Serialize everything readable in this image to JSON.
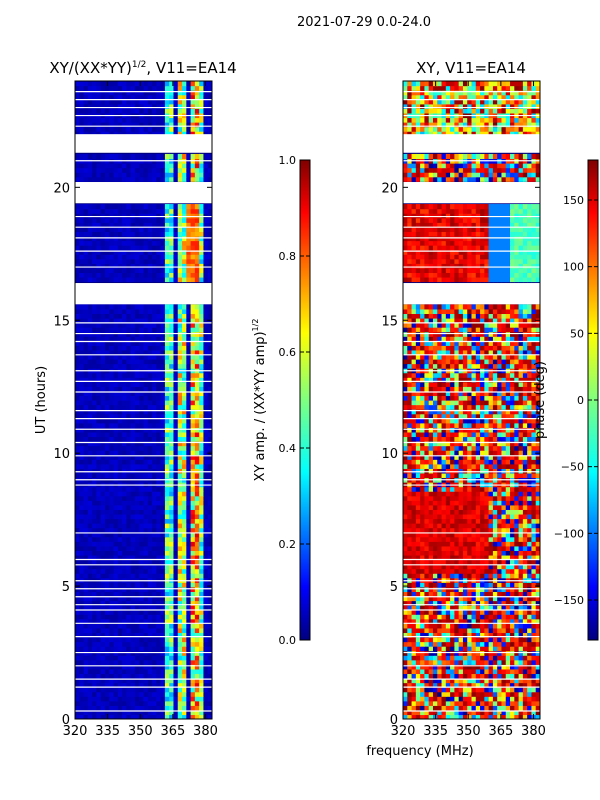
{
  "figure": {
    "suptitle": "2021-07-29 0.0-24.0",
    "shared_xlabel": "frequency (MHz)"
  },
  "chart_data": [
    {
      "type": "heatmap",
      "title_prefix": "XY/(XX*YY)",
      "title_exponent": "1/2",
      "title_suffix": ", V11=EA14",
      "xlabel": "frequency (MHz)",
      "ylabel": "UT (hours)",
      "xlim": [
        320,
        383
      ],
      "ylim": [
        0,
        24
      ],
      "xticks": [
        320,
        335,
        350,
        365,
        380
      ],
      "yticks": [
        0,
        5,
        10,
        15,
        20
      ],
      "colormap": "jet",
      "colorbar": {
        "label_prefix": "XY amp. / (XX*YY amp)",
        "label_exponent": "1/2",
        "range": [
          0.0,
          1.0
        ],
        "ticks": [
          "0.0",
          "0.2",
          "0.4",
          "0.6",
          "0.8",
          "1.0"
        ]
      },
      "blank_ut_bands": [
        [
          15.6,
          16.4
        ],
        [
          19.4,
          20.2
        ],
        [
          21.3,
          22.0
        ]
      ],
      "bright_channels_mhz": [
        {
          "range": [
            361,
            365
          ],
          "level": 0.45
        },
        {
          "range": [
            367,
            371
          ],
          "level": 0.55
        },
        {
          "range": [
            373,
            377
          ],
          "level": 0.65
        },
        {
          "range": [
            378,
            380
          ],
          "level": 0.5
        }
      ]
    },
    {
      "type": "heatmap",
      "title": "XY, V11=EA14",
      "xlabel": "frequency (MHz)",
      "ylabel": "",
      "xlim": [
        320,
        383
      ],
      "ylim": [
        0,
        24
      ],
      "xticks": [
        320,
        335,
        350,
        365,
        380
      ],
      "yticks": [
        0,
        5,
        10,
        15,
        20
      ],
      "colormap": "jet",
      "colorbar": {
        "label": "phase (deg)",
        "range": [
          -180,
          180
        ],
        "ticks": [
          "150",
          "100",
          "50",
          "0",
          "−50",
          "−100",
          "−150"
        ]
      },
      "blank_ut_bands": [
        [
          15.6,
          16.4
        ],
        [
          19.4,
          20.2
        ],
        [
          21.3,
          22.0
        ]
      ]
    }
  ]
}
